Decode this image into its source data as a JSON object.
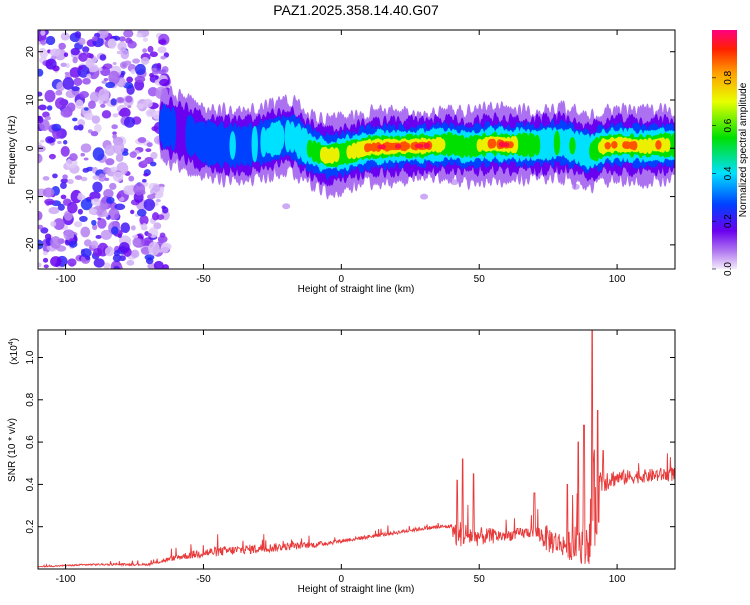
{
  "title": "PAZ1.2025.358.14.40.G07",
  "chart_data": [
    {
      "type": "heatmap",
      "xlabel": "Height of straight line (km)",
      "ylabel": "Frequency (Hz)",
      "xlim": [
        -110,
        121
      ],
      "ylim": [
        -25,
        24.5
      ],
      "xticks": [
        -100,
        -50,
        0,
        50,
        100
      ],
      "yticks": [
        -20,
        -10,
        0,
        10,
        20
      ],
      "noise_region": [
        -110,
        -65
      ],
      "ridge": {
        "x": [
          -65,
          -62,
          -58,
          -54,
          -50,
          -45,
          -40,
          -35,
          -30,
          -25,
          -20,
          -17,
          -14,
          -10,
          -5,
          0,
          10,
          20,
          30,
          40,
          45,
          50,
          55,
          60,
          65,
          70,
          75,
          80,
          85,
          90,
          95,
          100,
          105,
          110,
          115,
          121
        ],
        "freq": [
          4.6,
          4.2,
          3.5,
          2.4,
          1.2,
          0.8,
          0.6,
          0.5,
          1.0,
          1.8,
          2.6,
          2.2,
          0.8,
          -0.6,
          -1.6,
          -1.2,
          0.2,
          0.4,
          0.5,
          0.9,
          0.2,
          0.6,
          1.0,
          0.7,
          0.8,
          0.6,
          0.9,
          1.2,
          0.3,
          -0.8,
          0.4,
          0.8,
          0.6,
          0.4,
          0.7,
          0.6
        ],
        "amp": [
          0.35,
          0.3,
          0.25,
          0.3,
          0.3,
          0.35,
          0.4,
          0.35,
          0.4,
          0.45,
          0.4,
          0.4,
          0.45,
          0.6,
          0.9,
          0.6,
          0.9,
          0.95,
          0.9,
          0.7,
          0.55,
          0.7,
          0.9,
          0.95,
          0.7,
          0.6,
          0.5,
          0.55,
          0.5,
          0.5,
          0.8,
          0.9,
          0.85,
          0.7,
          0.9,
          0.6
        ]
      },
      "colorbar": {
        "label": "Normalized spectral amplitude",
        "range": [
          0,
          1
        ],
        "ticks": [
          0.0,
          0.2,
          0.4,
          0.6,
          0.8
        ],
        "tick_labels": [
          "0.0",
          "0.2",
          "0.4",
          "0.6",
          "0.8"
        ]
      }
    },
    {
      "type": "line",
      "xlabel": "Height of straight line (km)",
      "ylabel": "SNR (10 * v/v)",
      "y_multiplier": "(x10",
      "y_multiplier_exp": "4",
      "y_multiplier_close": ")",
      "xlim": [
        -110,
        121
      ],
      "ylim": [
        0.0,
        1.13
      ],
      "xticks": [
        -100,
        -50,
        0,
        50,
        100
      ],
      "yticks": [
        0.2,
        0.4,
        0.6,
        0.8,
        1.0
      ],
      "ytick_labels": [
        "0.2",
        "0.4",
        "0.6",
        "0.8",
        "1.0"
      ],
      "color": "#e83a3a",
      "envelope": {
        "x": [
          -110,
          -90,
          -70,
          -60,
          -50,
          -40,
          -30,
          -20,
          -10,
          0,
          10,
          20,
          30,
          40,
          41,
          50,
          60,
          70,
          75,
          80,
          85,
          90,
          91,
          93,
          94,
          100,
          110,
          121
        ],
        "base": [
          0.01,
          0.02,
          0.02,
          0.05,
          0.07,
          0.08,
          0.09,
          0.1,
          0.11,
          0.13,
          0.15,
          0.17,
          0.19,
          0.2,
          0.15,
          0.14,
          0.15,
          0.17,
          0.12,
          0.1,
          0.09,
          0.1,
          0.18,
          0.3,
          0.4,
          0.42,
          0.43,
          0.44
        ],
        "var": [
          0.005,
          0.01,
          0.01,
          0.03,
          0.05,
          0.05,
          0.05,
          0.04,
          0.03,
          0.02,
          0.02,
          0.02,
          0.02,
          0.02,
          0.15,
          0.1,
          0.06,
          0.06,
          0.15,
          0.12,
          0.2,
          0.25,
          0.6,
          0.55,
          0.15,
          0.08,
          0.07,
          0.08
        ]
      },
      "notable_spikes": [
        [
          42,
          0.42
        ],
        [
          44,
          0.52
        ],
        [
          48,
          0.45
        ],
        [
          70,
          0.36
        ],
        [
          82,
          0.4
        ],
        [
          86,
          0.6
        ],
        [
          88,
          0.68
        ],
        [
          91,
          1.13
        ],
        [
          93,
          0.75
        ],
        [
          95,
          0.56
        ]
      ]
    }
  ]
}
